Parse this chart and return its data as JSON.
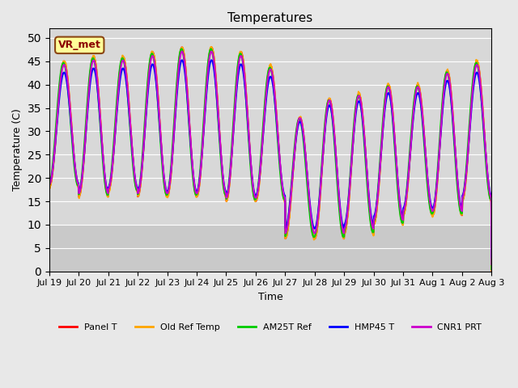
{
  "title": "Temperatures",
  "xlabel": "Time",
  "ylabel": "Temperature (C)",
  "ylim": [
    0,
    52
  ],
  "yticks": [
    0,
    5,
    10,
    15,
    20,
    25,
    30,
    35,
    40,
    45,
    50
  ],
  "bg_color": "#e8e8e8",
  "plot_bg_color": "#d8d8d8",
  "grid_color": "white",
  "annotation_text": "VR_met",
  "annotation_bg": "#ffff99",
  "annotation_border": "#8B4513",
  "series_names": [
    "Panel T",
    "Old Ref Temp",
    "AM25T Ref",
    "HMP45 T",
    "CNR1 PRT"
  ],
  "series_colors": [
    "#ff0000",
    "#ffa500",
    "#00cc00",
    "#0000ff",
    "#cc00cc"
  ],
  "series_lw": [
    1.5,
    1.5,
    1.5,
    1.5,
    1.5
  ],
  "x_tick_labels": [
    "Jul 19",
    "Jul 20",
    "Jul 21",
    "Jul 22",
    "Jul 23",
    "Jul 24",
    "Jul 25",
    "Jul 26",
    "Jul 27",
    "Jul 28",
    "Jul 29",
    "Jul 30",
    "Jul 31",
    "Aug 1",
    "Aug 2",
    "Aug 3"
  ],
  "n_days": 15,
  "points_per_day": 100,
  "day_params": [
    {
      "tmin": 18,
      "tmax": 45
    },
    {
      "tmin": 16,
      "tmax": 46
    },
    {
      "tmin": 17,
      "tmax": 46
    },
    {
      "tmin": 16,
      "tmax": 47
    },
    {
      "tmin": 16,
      "tmax": 48
    },
    {
      "tmin": 16,
      "tmax": 48
    },
    {
      "tmin": 15,
      "tmax": 47
    },
    {
      "tmin": 15,
      "tmax": 44
    },
    {
      "tmin": 7,
      "tmax": 33
    },
    {
      "tmin": 7,
      "tmax": 37
    },
    {
      "tmin": 8,
      "tmax": 38
    },
    {
      "tmin": 10,
      "tmax": 40
    },
    {
      "tmin": 12,
      "tmax": 40
    },
    {
      "tmin": 12,
      "tmax": 43
    },
    {
      "tmin": 15,
      "tmax": 45
    }
  ]
}
